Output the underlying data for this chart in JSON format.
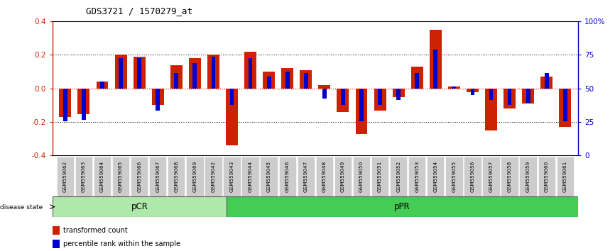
{
  "title": "GDS3721 / 1570279_at",
  "samples": [
    "GSM559062",
    "GSM559063",
    "GSM559064",
    "GSM559065",
    "GSM559066",
    "GSM559067",
    "GSM559068",
    "GSM559069",
    "GSM559042",
    "GSM559043",
    "GSM559044",
    "GSM559045",
    "GSM559046",
    "GSM559047",
    "GSM559048",
    "GSM559049",
    "GSM559050",
    "GSM559051",
    "GSM559052",
    "GSM559053",
    "GSM559054",
    "GSM559055",
    "GSM559056",
    "GSM559057",
    "GSM559058",
    "GSM559059",
    "GSM559060",
    "GSM559061"
  ],
  "red_values": [
    -0.17,
    -0.155,
    0.04,
    0.2,
    0.19,
    -0.1,
    0.14,
    0.18,
    0.2,
    -0.34,
    0.22,
    0.1,
    0.12,
    0.11,
    0.02,
    -0.14,
    -0.27,
    -0.13,
    -0.05,
    0.13,
    0.35,
    0.01,
    -0.02,
    -0.25,
    -0.12,
    -0.09,
    0.07,
    -0.23
  ],
  "blue_values": [
    -0.195,
    -0.185,
    0.04,
    0.18,
    0.18,
    -0.13,
    0.09,
    0.15,
    0.19,
    -0.1,
    0.18,
    0.07,
    0.1,
    0.09,
    -0.06,
    -0.1,
    -0.195,
    -0.1,
    -0.07,
    0.09,
    0.23,
    0.01,
    -0.04,
    -0.07,
    -0.1,
    -0.085,
    0.09,
    -0.195
  ],
  "pcr_count": 9,
  "ppr_count": 19,
  "ylim": [
    -0.4,
    0.4
  ],
  "yticks_red": [
    -0.4,
    -0.2,
    0.0,
    0.2,
    0.4
  ],
  "yticks_blue": [
    0,
    25,
    50,
    75,
    100
  ],
  "red_color": "#cc2200",
  "blue_color": "#0000cc",
  "background_color": "#ffffff",
  "pcr_color": "#aee8aa",
  "ppr_color": "#44cc55",
  "label_bg": "#cccccc"
}
